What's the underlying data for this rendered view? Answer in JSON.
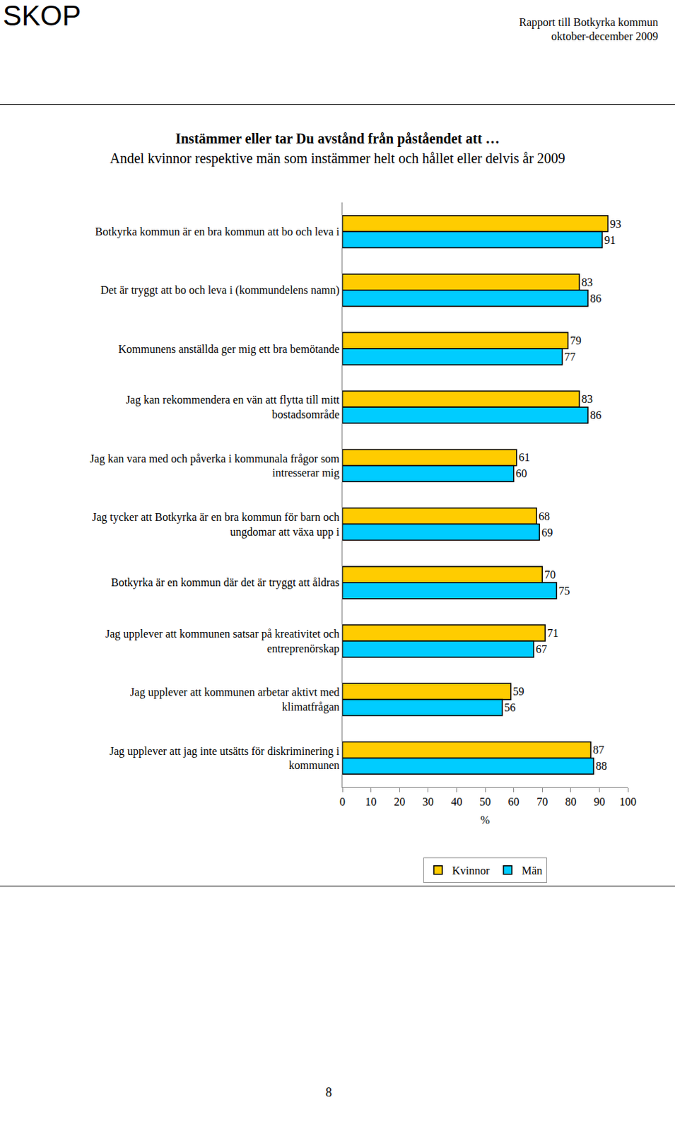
{
  "page": {
    "logo": "SKOP",
    "report": "Rapport till Botkyrka kommun",
    "period": "oktober-december 2009",
    "page_number": "8"
  },
  "chart_data": {
    "type": "bar",
    "orientation": "horizontal",
    "title": "Instämmer eller tar Du avstånd från påståendet att …",
    "subtitle": "Andel kvinnor respektive män som instämmer helt och hållet eller delvis år 2009",
    "x_label": "%",
    "categories": [
      "Botkyrka kommun är en bra kommun att bo och leva i",
      "Det är tryggt att bo och leva i (kommundelens namn)",
      "Kommunens anställda ger mig ett bra bemötande",
      "Jag kan rekommendera en vän att flytta till mitt bostadsområde",
      "Jag kan vara med och påverka i kommunala frågor som intresserar mig",
      "Jag tycker att Botkyrka är en bra kommun för barn och ungdomar att växa upp i",
      "Botkyrka är en kommun där det är tryggt att åldras",
      "Jag upplever att kommunen satsar på kreativitet och entreprenörskap",
      "Jag upplever att kommunen arbetar aktivt med klimatfrågan",
      "Jag upplever att jag inte utsätts för diskriminering i kommunen"
    ],
    "series": [
      {
        "name": "Kvinnor",
        "color": "#FFCC00",
        "values": [
          93,
          83,
          79,
          83,
          61,
          68,
          70,
          71,
          59,
          87
        ]
      },
      {
        "name": "Män",
        "color": "#00CCFF",
        "values": [
          91,
          86,
          77,
          86,
          60,
          69,
          75,
          67,
          56,
          88
        ]
      }
    ],
    "xlim": [
      0,
      100
    ],
    "xticks": [
      0,
      10,
      20,
      30,
      40,
      50,
      60,
      70,
      80,
      90,
      100
    ],
    "data_labels": true,
    "grid": false,
    "legend": "bottom"
  }
}
